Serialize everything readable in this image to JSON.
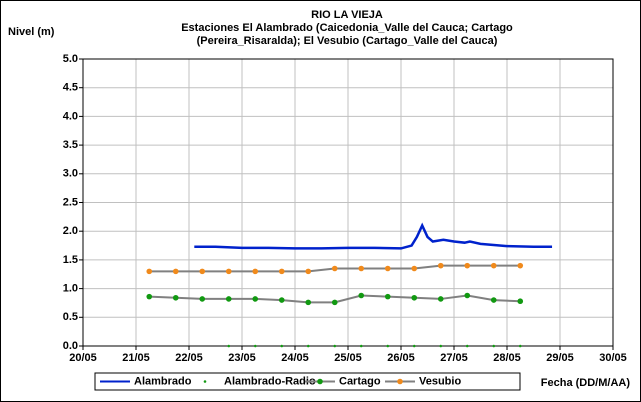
{
  "chart_data": {
    "type": "line",
    "title": "RIO LA VIEJA",
    "subtitle": [
      "Estaciones El Alambrado (Caicedonia_Valle del Cauca; Cartago",
      "(Pereira_Risaralda);  El Vesubio (Cartago_Valle del Cauca)"
    ],
    "y_label": "Nivel (m)",
    "x_label": "Fecha (DD/M/AA)",
    "xlim": [
      20,
      30
    ],
    "xticks": [
      {
        "value": 20,
        "label": "20/05"
      },
      {
        "value": 21,
        "label": "21/05"
      },
      {
        "value": 22,
        "label": "22/05"
      },
      {
        "value": 23,
        "label": "23/05"
      },
      {
        "value": 24,
        "label": "24/05"
      },
      {
        "value": 25,
        "label": "25/05"
      },
      {
        "value": 26,
        "label": "26/05"
      },
      {
        "value": 27,
        "label": "27/05"
      },
      {
        "value": 28,
        "label": "28/05"
      },
      {
        "value": 29,
        "label": "29/05"
      },
      {
        "value": 30,
        "label": "30/05"
      }
    ],
    "ylim": [
      0,
      5
    ],
    "yticks": [
      {
        "value": 0,
        "label": "0.0"
      },
      0.5,
      {
        "value": 1,
        "label": "1.0"
      },
      1.5,
      {
        "value": 2,
        "label": "2.0"
      },
      2.5,
      {
        "value": 3,
        "label": "3.0"
      },
      3.5,
      {
        "value": 4,
        "label": "4.0"
      },
      4.5,
      {
        "value": 5,
        "label": "5.0"
      }
    ],
    "grid": true,
    "legend": "bottom",
    "series": [
      {
        "name": "Alambrado",
        "color": "#0022cc",
        "line": true,
        "line_color": "#0022cc",
        "marker": false,
        "x": [
          22.1,
          22.5,
          23,
          23.5,
          24,
          24.5,
          25,
          25.5,
          26,
          26.2,
          26.3,
          26.4,
          26.5,
          26.6,
          26.8,
          27,
          27.2,
          27.3,
          27.5,
          28,
          28.5,
          28.85
        ],
        "values": [
          1.73,
          1.73,
          1.71,
          1.71,
          1.7,
          1.7,
          1.71,
          1.71,
          1.7,
          1.75,
          1.9,
          2.1,
          1.9,
          1.82,
          1.85,
          1.82,
          1.8,
          1.82,
          1.78,
          1.74,
          1.73,
          1.73
        ]
      },
      {
        "name": "Alambrado-Radio",
        "color": "#119911",
        "line": false,
        "line_color": "#119911",
        "marker": true,
        "x": [
          22.75,
          23.25,
          23.75,
          24.25,
          24.75,
          25.25,
          25.75,
          26.25,
          26.75,
          27.25,
          27.75,
          28.25
        ],
        "values": [
          0,
          0,
          0,
          0,
          0,
          0,
          0,
          0,
          0,
          0,
          0,
          0
        ]
      },
      {
        "name": "Cartago",
        "color": "#119911",
        "line": true,
        "line_color": "#808080",
        "marker": true,
        "x": [
          21.25,
          21.75,
          22.25,
          22.75,
          23.25,
          23.75,
          24.25,
          24.75,
          25.25,
          25.75,
          26.25,
          26.75,
          27.25,
          27.75,
          28.25
        ],
        "values": [
          0.86,
          0.84,
          0.82,
          0.82,
          0.82,
          0.8,
          0.76,
          0.76,
          0.88,
          0.86,
          0.84,
          0.82,
          0.88,
          0.8,
          0.78
        ]
      },
      {
        "name": "Vesubio",
        "color": "#f08a1c",
        "line": true,
        "line_color": "#808080",
        "marker": true,
        "x": [
          21.25,
          21.75,
          22.25,
          22.75,
          23.25,
          23.75,
          24.25,
          24.75,
          25.25,
          25.75,
          26.25,
          26.75,
          27.25,
          27.75,
          28.25
        ],
        "values": [
          1.3,
          1.3,
          1.3,
          1.3,
          1.3,
          1.3,
          1.3,
          1.35,
          1.35,
          1.35,
          1.35,
          1.4,
          1.4,
          1.4,
          1.4
        ]
      }
    ]
  }
}
